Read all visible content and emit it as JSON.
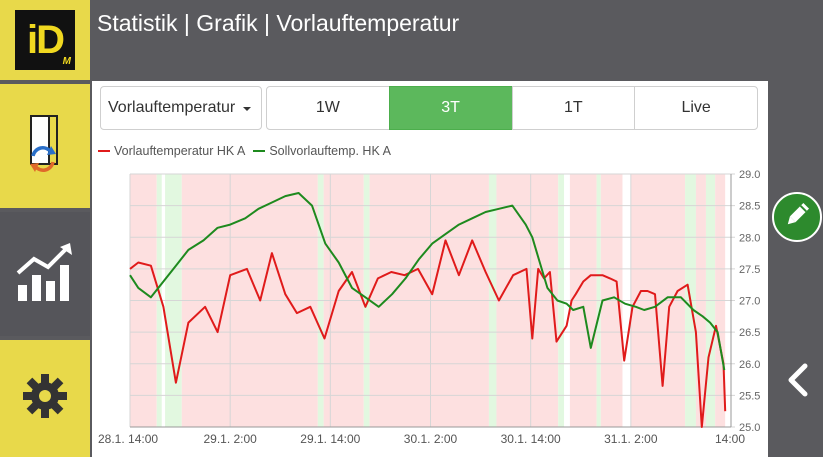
{
  "header": {
    "logo_text": "iD",
    "logo_sub": "M",
    "title": "Statistik | Grafik | Vorlauftemperatur"
  },
  "sidebar": {
    "items": [
      {
        "name": "navigation",
        "icon": "door-refresh-icon"
      },
      {
        "name": "statistics",
        "icon": "bar-chart-trend-icon"
      },
      {
        "name": "settings",
        "icon": "gear-icon"
      }
    ]
  },
  "toolbar": {
    "select_value": "Vorlauftemperatur",
    "ranges": [
      {
        "label": "1W",
        "active": false
      },
      {
        "label": "3T",
        "active": true
      },
      {
        "label": "1T",
        "active": false
      },
      {
        "label": "Live",
        "active": false
      }
    ]
  },
  "colors": {
    "accent_yellow": "#e8d94a",
    "active_green": "#5cb85c",
    "series_red": "#e01b1b",
    "series_green": "#1e8a1e",
    "band_red": "#fde0e0",
    "band_green": "#e2f8e0"
  },
  "chart_data": {
    "type": "line",
    "xlim": [
      0,
      72
    ],
    "ylim": [
      25.0,
      29.0
    ],
    "ticks_y": [
      "25.0",
      "25.5",
      "26.0",
      "26.5",
      "27.0",
      "27.5",
      "28.0",
      "28.5",
      "29.0"
    ],
    "ticks_x": [
      {
        "x": 0,
        "label": "28.1. 14:00"
      },
      {
        "x": 12,
        "label": "29.1. 2:00"
      },
      {
        "x": 24,
        "label": "29.1. 14:00"
      },
      {
        "x": 36,
        "label": "30.1. 2:00"
      },
      {
        "x": 48,
        "label": "30.1. 14:00"
      },
      {
        "x": 60,
        "label": "31.1. 2:00"
      },
      {
        "x": 72,
        "label": "14:00"
      }
    ],
    "grid": true,
    "legend_position": "top-left",
    "series": [
      {
        "name": "Vorlauftemperatur HK A",
        "color": "#e01b1b",
        "x": [
          0,
          1,
          2.5,
          4,
          5.5,
          7,
          9,
          10.5,
          12,
          14,
          15.6,
          17,
          18.6,
          20,
          21.6,
          23.3,
          25,
          26.6,
          28.2,
          29.7,
          31.3,
          32.9,
          34.5,
          36.2,
          37.8,
          39.4,
          41,
          42.6,
          44.2,
          45.9,
          47.5,
          48.2,
          48.9,
          49.6,
          50.3,
          51.1,
          52.3,
          52.9,
          53.4,
          54.3,
          55.2,
          56.6,
          57.5,
          58.3,
          59.2,
          60.2,
          61.2,
          62,
          62.9,
          63.8,
          64.6,
          65.6,
          66.8,
          67.8,
          68.5,
          69.3,
          70.2,
          71.1,
          71.3
        ],
        "y": [
          27.5,
          27.6,
          27.55,
          26.9,
          25.7,
          26.65,
          26.9,
          26.5,
          27.4,
          27.5,
          27.0,
          27.75,
          27.1,
          26.8,
          26.9,
          26.4,
          27.15,
          27.45,
          26.9,
          27.35,
          27.45,
          27.4,
          27.5,
          27.1,
          27.95,
          27.4,
          27.95,
          27.45,
          27.0,
          27.4,
          27.5,
          26.4,
          27.5,
          27.35,
          27.45,
          26.35,
          26.6,
          27.0,
          27.1,
          27.3,
          27.4,
          27.4,
          27.35,
          27.3,
          26.05,
          26.9,
          27.15,
          27.15,
          27.1,
          25.65,
          26.9,
          27.15,
          27.25,
          26.5,
          25.0,
          26.1,
          26.6,
          26.0,
          25.25
        ]
      },
      {
        "name": "Sollvorlauftemp. HK A",
        "color": "#1e8a1e",
        "x": [
          0,
          1,
          2.5,
          4,
          5.5,
          7,
          8.8,
          10.5,
          12,
          13.8,
          15.4,
          17,
          18.6,
          20.2,
          21.8,
          23.4,
          25,
          26.6,
          28.2,
          29.8,
          31.4,
          33,
          34.6,
          36.2,
          37.8,
          39.4,
          41,
          42.6,
          44.2,
          45.8,
          47.4,
          48.2,
          49.1,
          50,
          51.2,
          52.3,
          53.1,
          54.3,
          55.2,
          56.6,
          58,
          59.3,
          60.6,
          61.6,
          62.9,
          64.4,
          66,
          67.5,
          68.6,
          69.5,
          70.4,
          71.2
        ],
        "y": [
          27.4,
          27.2,
          27.05,
          27.3,
          27.55,
          27.8,
          27.95,
          28.15,
          28.2,
          28.3,
          28.45,
          28.55,
          28.65,
          28.7,
          28.5,
          27.9,
          27.6,
          27.2,
          27.05,
          26.9,
          27.1,
          27.35,
          27.65,
          27.9,
          28.05,
          28.2,
          28.3,
          28.4,
          28.45,
          28.5,
          28.2,
          28.0,
          27.6,
          27.2,
          27.0,
          26.95,
          26.85,
          26.9,
          26.25,
          27.0,
          27.05,
          26.95,
          26.9,
          26.85,
          26.9,
          27.05,
          27.05,
          26.85,
          26.75,
          26.65,
          26.5,
          25.9
        ]
      }
    ],
    "bands": [
      {
        "start": 0.0,
        "end": 3.2,
        "color": "red"
      },
      {
        "start": 3.2,
        "end": 3.8,
        "color": "green"
      },
      {
        "start": 4.2,
        "end": 6.2,
        "color": "green"
      },
      {
        "start": 6.2,
        "end": 22.5,
        "color": "red"
      },
      {
        "start": 22.5,
        "end": 23.2,
        "color": "green"
      },
      {
        "start": 23.2,
        "end": 28.0,
        "color": "red"
      },
      {
        "start": 28.0,
        "end": 28.7,
        "color": "green"
      },
      {
        "start": 28.7,
        "end": 43.0,
        "color": "red"
      },
      {
        "start": 43.0,
        "end": 43.9,
        "color": "green"
      },
      {
        "start": 43.9,
        "end": 51.3,
        "color": "red"
      },
      {
        "start": 51.3,
        "end": 52.0,
        "color": "green"
      },
      {
        "start": 52.7,
        "end": 55.9,
        "color": "red"
      },
      {
        "start": 55.9,
        "end": 56.4,
        "color": "green"
      },
      {
        "start": 56.4,
        "end": 59.0,
        "color": "red"
      },
      {
        "start": 60.0,
        "end": 66.5,
        "color": "red"
      },
      {
        "start": 66.5,
        "end": 67.8,
        "color": "green"
      },
      {
        "start": 67.8,
        "end": 69.0,
        "color": "red"
      },
      {
        "start": 69.0,
        "end": 70.1,
        "color": "green"
      },
      {
        "start": 70.1,
        "end": 71.3,
        "color": "red"
      }
    ]
  }
}
